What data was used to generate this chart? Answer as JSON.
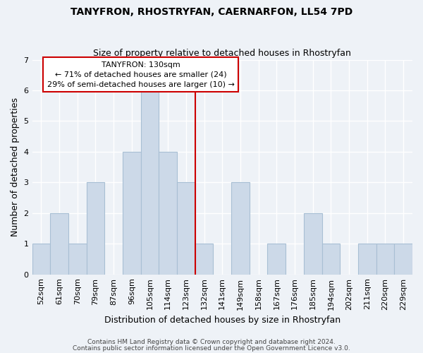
{
  "title": "TANYFRON, RHOSTRYFAN, CAERNARFON, LL54 7PD",
  "subtitle": "Size of property relative to detached houses in Rhostryfan",
  "xlabel": "Distribution of detached houses by size in Rhostryfan",
  "ylabel": "Number of detached properties",
  "bins": [
    "52sqm",
    "61sqm",
    "70sqm",
    "79sqm",
    "87sqm",
    "96sqm",
    "105sqm",
    "114sqm",
    "123sqm",
    "132sqm",
    "141sqm",
    "149sqm",
    "158sqm",
    "167sqm",
    "176sqm",
    "185sqm",
    "194sqm",
    "202sqm",
    "211sqm",
    "220sqm",
    "229sqm"
  ],
  "counts": [
    1,
    2,
    1,
    3,
    0,
    4,
    6,
    4,
    3,
    1,
    0,
    3,
    0,
    1,
    0,
    2,
    1,
    0,
    1,
    1,
    1
  ],
  "bar_color": "#ccd9e8",
  "bar_edge_color": "#a8bfd4",
  "reference_line_color": "#cc0000",
  "reference_line_index": 9,
  "annotation_title": "TANYFRON: 130sqm",
  "annotation_line1": "← 71% of detached houses are smaller (24)",
  "annotation_line2": "29% of semi-detached houses are larger (10) →",
  "annotation_box_edge": "#cc0000",
  "ylim": [
    0,
    7
  ],
  "yticks": [
    0,
    1,
    2,
    3,
    4,
    5,
    6,
    7
  ],
  "footnote1": "Contains HM Land Registry data © Crown copyright and database right 2024.",
  "footnote2": "Contains public sector information licensed under the Open Government Licence v3.0.",
  "bg_color": "#eef2f7",
  "grid_color": "#ffffff",
  "title_fontsize": 10,
  "subtitle_fontsize": 9,
  "ylabel_fontsize": 9,
  "xlabel_fontsize": 9,
  "tick_fontsize": 8,
  "footnote_fontsize": 6.5
}
